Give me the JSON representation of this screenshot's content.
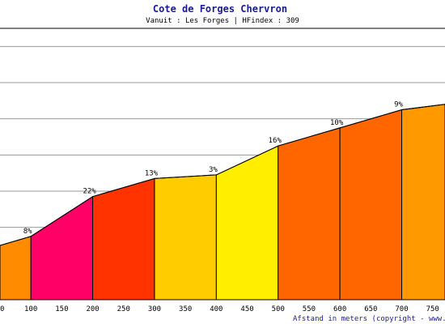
{
  "chart_data": {
    "type": "area",
    "title": "Cote de Forges Chervron",
    "subtitle": "Vanuit : Les Forges | HFindex : 309",
    "xlabel": "Afstand in meters (copyright - www.hard",
    "x_ticks": [
      "0",
      "100",
      "150",
      "200",
      "250",
      "300",
      "350",
      "400",
      "450",
      "500",
      "550",
      "600",
      "650",
      "700",
      "750"
    ],
    "xlim": [
      50,
      770
    ],
    "ylim": [
      0,
      75
    ],
    "y_gridlines": [
      10,
      20,
      30,
      40,
      50,
      60,
      70
    ],
    "grid": true,
    "profile": [
      {
        "x": 50,
        "y": 15
      },
      {
        "x": 100,
        "y": 17.5
      },
      {
        "x": 200,
        "y": 28.5
      },
      {
        "x": 300,
        "y": 33.5
      },
      {
        "x": 400,
        "y": 34.5
      },
      {
        "x": 500,
        "y": 42.5
      },
      {
        "x": 600,
        "y": 47.5
      },
      {
        "x": 700,
        "y": 52.5
      },
      {
        "x": 770,
        "y": 54
      }
    ],
    "segments": [
      {
        "label": "",
        "color": "#FF8C00"
      },
      {
        "label": "8%",
        "color": "#FF0066"
      },
      {
        "label": "22%",
        "color": "#FF3300"
      },
      {
        "label": "13%",
        "color": "#FFCC00"
      },
      {
        "label": "3%",
        "color": "#FFEE00"
      },
      {
        "label": "16%",
        "color": "#FF6600"
      },
      {
        "label": "10%",
        "color": "#FF6600"
      },
      {
        "label": "9%",
        "color": "#FF9900"
      },
      {
        "label": "",
        "color": "#FFC000"
      }
    ]
  }
}
